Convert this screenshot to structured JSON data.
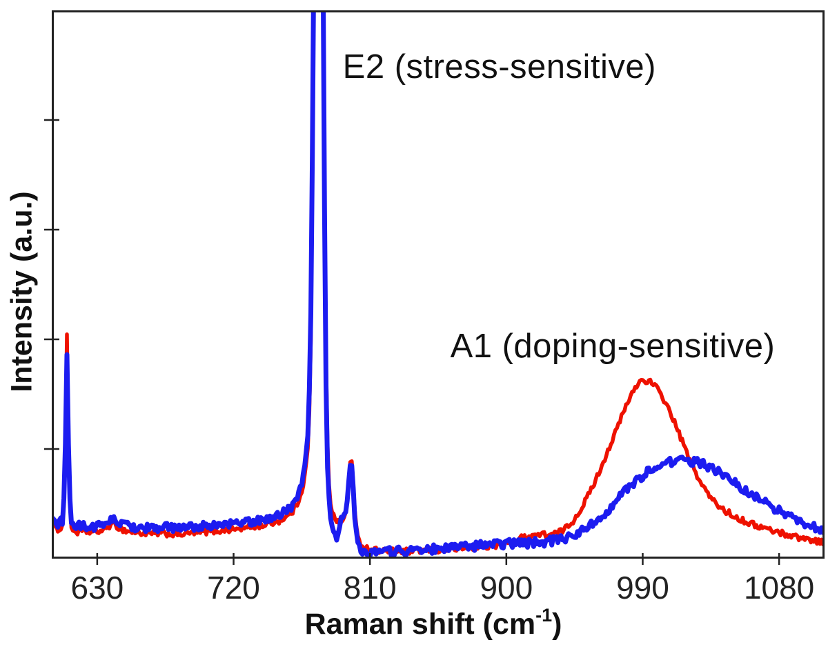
{
  "figure": {
    "background": "#ffffff",
    "x_axis_title": {
      "base": "Raman shift (cm",
      "sup": "-1",
      "end": ")"
    },
    "y_axis_title": "Intensity (a.u.)"
  },
  "chart_data": {
    "type": "line",
    "title": "",
    "xlabel": "Raman shift (cm⁻¹)",
    "ylabel": "Intensity (a.u.)",
    "x_range": [
      600,
      1110
    ],
    "y_range": [
      0,
      1.0
    ],
    "x_ticks": [
      630,
      720,
      810,
      900,
      990,
      1080
    ],
    "y_ticks_unlabeled": [
      0.2,
      0.4,
      0.6,
      0.8
    ],
    "grid": false,
    "legend_position": "none",
    "axis_color": "#222222",
    "annotations": [
      {
        "text": "E2 (stress-sensitive)",
        "x": 792,
        "y": 0.93
      },
      {
        "text": "A1 (doping-sensitive)",
        "x": 863,
        "y": 0.42
      }
    ],
    "series": [
      {
        "id": "red-trace",
        "color": "#ee1100",
        "line_width": 5.5,
        "noise": 0.0055,
        "points": [
          [
            600,
            0.058
          ],
          [
            604,
            0.054
          ],
          [
            607,
            0.058
          ],
          [
            608.5,
            0.12
          ],
          [
            610,
            0.409
          ],
          [
            611.5,
            0.12
          ],
          [
            613,
            0.056
          ],
          [
            616,
            0.048
          ],
          [
            620,
            0.05
          ],
          [
            628,
            0.048
          ],
          [
            634,
            0.052
          ],
          [
            638,
            0.06
          ],
          [
            641,
            0.063
          ],
          [
            645,
            0.055
          ],
          [
            650,
            0.05
          ],
          [
            658,
            0.047
          ],
          [
            666,
            0.045
          ],
          [
            674,
            0.046
          ],
          [
            682,
            0.044
          ],
          [
            690,
            0.046
          ],
          [
            698,
            0.048
          ],
          [
            706,
            0.05
          ],
          [
            714,
            0.052
          ],
          [
            722,
            0.054
          ],
          [
            730,
            0.057
          ],
          [
            738,
            0.06
          ],
          [
            744,
            0.064
          ],
          [
            750,
            0.069
          ],
          [
            755,
            0.076
          ],
          [
            759,
            0.086
          ],
          [
            762,
            0.1
          ],
          [
            765,
            0.124
          ],
          [
            767,
            0.15
          ],
          [
            769,
            0.2
          ],
          [
            770.5,
            0.3
          ],
          [
            771.5,
            0.5
          ],
          [
            772.3,
            0.8
          ],
          [
            772.8,
            1.1
          ],
          [
            779.0,
            1.1
          ],
          [
            779.8,
            0.75
          ],
          [
            780.6,
            0.45
          ],
          [
            781.5,
            0.26
          ],
          [
            782.5,
            0.155
          ],
          [
            784,
            0.1
          ],
          [
            786,
            0.078
          ],
          [
            788,
            0.068
          ],
          [
            790,
            0.065
          ],
          [
            792,
            0.068
          ],
          [
            793.5,
            0.075
          ],
          [
            795,
            0.1
          ],
          [
            796.5,
            0.16
          ],
          [
            797.6,
            0.195
          ],
          [
            798.6,
            0.16
          ],
          [
            799.6,
            0.1
          ],
          [
            800.8,
            0.06
          ],
          [
            802,
            0.038
          ],
          [
            804,
            0.026
          ],
          [
            807,
            0.02
          ],
          [
            812,
            0.016
          ],
          [
            820,
            0.014
          ],
          [
            830,
            0.013
          ],
          [
            840,
            0.014
          ],
          [
            852,
            0.015
          ],
          [
            862,
            0.017
          ],
          [
            872,
            0.019
          ],
          [
            882,
            0.021
          ],
          [
            892,
            0.024
          ],
          [
            900,
            0.028
          ],
          [
            906,
            0.033
          ],
          [
            911,
            0.039
          ],
          [
            917,
            0.043
          ],
          [
            923,
            0.044
          ],
          [
            929,
            0.044
          ],
          [
            934,
            0.047
          ],
          [
            938,
            0.053
          ],
          [
            943,
            0.065
          ],
          [
            948,
            0.085
          ],
          [
            954,
            0.115
          ],
          [
            960,
            0.15
          ],
          [
            966,
            0.19
          ],
          [
            972,
            0.23
          ],
          [
            977,
            0.265
          ],
          [
            981,
            0.29
          ],
          [
            985,
            0.312
          ],
          [
            988,
            0.323
          ],
          [
            991,
            0.326
          ],
          [
            995,
            0.322
          ],
          [
            999,
            0.312
          ],
          [
            1003,
            0.295
          ],
          [
            1008,
            0.268
          ],
          [
            1013,
            0.235
          ],
          [
            1018,
            0.2
          ],
          [
            1023,
            0.168
          ],
          [
            1028,
            0.14
          ],
          [
            1033,
            0.118
          ],
          [
            1038,
            0.101
          ],
          [
            1044,
            0.088
          ],
          [
            1050,
            0.078
          ],
          [
            1056,
            0.07
          ],
          [
            1063,
            0.062
          ],
          [
            1070,
            0.056
          ],
          [
            1077,
            0.05
          ],
          [
            1084,
            0.045
          ],
          [
            1091,
            0.04
          ],
          [
            1098,
            0.036
          ],
          [
            1104,
            0.033
          ],
          [
            1110,
            0.03
          ]
        ]
      },
      {
        "id": "blue-trace",
        "color": "#1c1cf0",
        "line_width": 7,
        "noise": 0.008,
        "points": [
          [
            600,
            0.068
          ],
          [
            604,
            0.064
          ],
          [
            607,
            0.068
          ],
          [
            608.5,
            0.13
          ],
          [
            610,
            0.371
          ],
          [
            611.5,
            0.13
          ],
          [
            613,
            0.066
          ],
          [
            616,
            0.058
          ],
          [
            620,
            0.06
          ],
          [
            626,
            0.058
          ],
          [
            632,
            0.06
          ],
          [
            637,
            0.068
          ],
          [
            641,
            0.072
          ],
          [
            645,
            0.064
          ],
          [
            650,
            0.06
          ],
          [
            658,
            0.057
          ],
          [
            666,
            0.056
          ],
          [
            674,
            0.057
          ],
          [
            682,
            0.056
          ],
          [
            690,
            0.057
          ],
          [
            698,
            0.059
          ],
          [
            706,
            0.061
          ],
          [
            714,
            0.062
          ],
          [
            722,
            0.064
          ],
          [
            730,
            0.067
          ],
          [
            738,
            0.07
          ],
          [
            744,
            0.074
          ],
          [
            750,
            0.08
          ],
          [
            755,
            0.088
          ],
          [
            759,
            0.098
          ],
          [
            762,
            0.113
          ],
          [
            765,
            0.14
          ],
          [
            767,
            0.17
          ],
          [
            769,
            0.23
          ],
          [
            770.5,
            0.34
          ],
          [
            771.5,
            0.55
          ],
          [
            772.3,
            0.85
          ],
          [
            772.8,
            1.1
          ],
          [
            779.0,
            1.1
          ],
          [
            779.8,
            0.72
          ],
          [
            780.6,
            0.4
          ],
          [
            781.5,
            0.21
          ],
          [
            782.5,
            0.12
          ],
          [
            784,
            0.075
          ],
          [
            785.5,
            0.052
          ],
          [
            787,
            0.04
          ],
          [
            788.5,
            0.038
          ],
          [
            790,
            0.06
          ],
          [
            791.5,
            0.08
          ],
          [
            793,
            0.085
          ],
          [
            794.5,
            0.095
          ],
          [
            796,
            0.14
          ],
          [
            797.5,
            0.185
          ],
          [
            798.6,
            0.15
          ],
          [
            799.6,
            0.09
          ],
          [
            800.8,
            0.05
          ],
          [
            802,
            0.028
          ],
          [
            804,
            0.016
          ],
          [
            807,
            0.012
          ],
          [
            812,
            0.012
          ],
          [
            820,
            0.013
          ],
          [
            830,
            0.014
          ],
          [
            840,
            0.015
          ],
          [
            850,
            0.017
          ],
          [
            860,
            0.019
          ],
          [
            870,
            0.021
          ],
          [
            880,
            0.023
          ],
          [
            890,
            0.025
          ],
          [
            900,
            0.027
          ],
          [
            908,
            0.028
          ],
          [
            916,
            0.029
          ],
          [
            924,
            0.03
          ],
          [
            932,
            0.033
          ],
          [
            940,
            0.038
          ],
          [
            947,
            0.046
          ],
          [
            954,
            0.058
          ],
          [
            961,
            0.073
          ],
          [
            968,
            0.092
          ],
          [
            975,
            0.113
          ],
          [
            982,
            0.133
          ],
          [
            989,
            0.15
          ],
          [
            996,
            0.163
          ],
          [
            1003,
            0.172
          ],
          [
            1010,
            0.178
          ],
          [
            1016,
            0.18
          ],
          [
            1022,
            0.178
          ],
          [
            1028,
            0.174
          ],
          [
            1034,
            0.168
          ],
          [
            1040,
            0.158
          ],
          [
            1046,
            0.147
          ],
          [
            1052,
            0.135
          ],
          [
            1058,
            0.124
          ],
          [
            1065,
            0.112
          ],
          [
            1072,
            0.1
          ],
          [
            1079,
            0.089
          ],
          [
            1086,
            0.079
          ],
          [
            1093,
            0.07
          ],
          [
            1100,
            0.062
          ],
          [
            1105,
            0.056
          ],
          [
            1110,
            0.051
          ]
        ]
      }
    ]
  }
}
